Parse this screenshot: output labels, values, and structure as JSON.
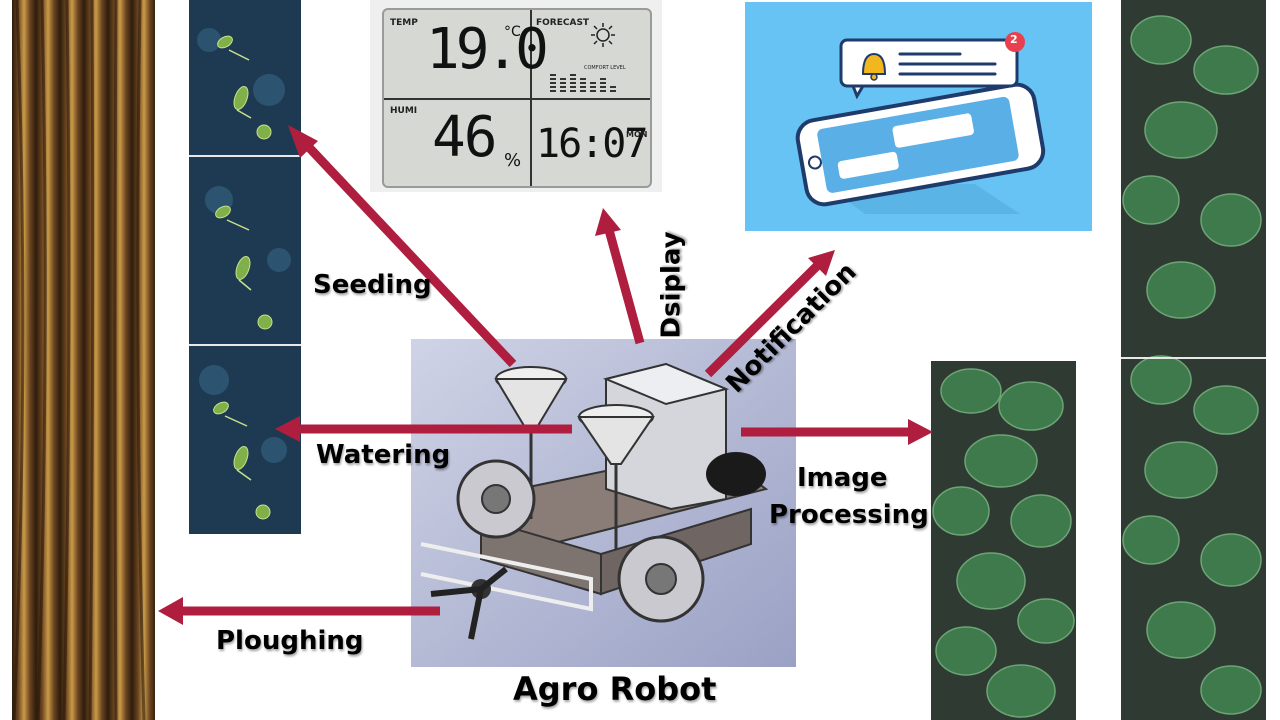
{
  "title": "Agro Robot",
  "labels": {
    "seeding": "Seeding",
    "watering": "Watering",
    "ploughing": "Ploughing",
    "display": "Dsiplay",
    "notification": "Notification",
    "image_processing_line1": "Image",
    "image_processing_line2": "Processing"
  },
  "lcd": {
    "temp_label": "TEMP",
    "temp_value": "19.0",
    "temp_unit": "°C",
    "forecast_label": "FORECAST",
    "humi_label": "HUMI",
    "humi_value": "46",
    "humi_unit": "%",
    "comfort_label": "COMFORT LEVEL",
    "time": "16:07",
    "day": "MON"
  },
  "notification_badge": "2",
  "colors": {
    "arrow": "#b01e3f",
    "notification_bg": "#67c3f3",
    "soil_dark": "#3a2812",
    "soil_light": "#c4913f",
    "leaf": "#3f7a4c",
    "water_bg": "#1e3a52"
  }
}
